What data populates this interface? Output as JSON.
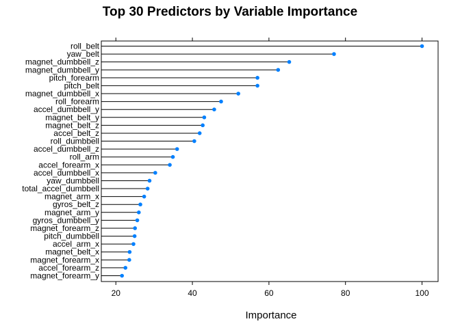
{
  "chart_data": {
    "type": "dotplot",
    "title": "Top 30 Predictors by Variable Importance",
    "xlabel": "Importance",
    "ylabel": "",
    "xlim": [
      16.2,
      104.2
    ],
    "xticks": [
      20,
      40,
      60,
      80,
      100
    ],
    "grid": false,
    "colors": {
      "point": "#0080ff",
      "segment": "#000000",
      "frame": "#000000"
    },
    "categories": [
      "roll_belt",
      "yaw_belt",
      "magnet_dumbbell_z",
      "magnet_dumbbell_y",
      "pitch_forearm",
      "pitch_belt",
      "magnet_dumbbell_x",
      "roll_forearm",
      "accel_dumbbell_y",
      "magnet_belt_y",
      "magnet_belt_z",
      "accel_belt_z",
      "roll_dumbbell",
      "accel_dumbbell_z",
      "roll_arm",
      "accel_forearm_x",
      "accel_dumbbell_x",
      "yaw_dumbbell",
      "total_accel_dumbbell",
      "magnet_arm_x",
      "gyros_belt_z",
      "magnet_arm_y",
      "gyros_dumbbell_y",
      "magnet_forearm_z",
      "pitch_dumbbell",
      "accel_arm_x",
      "magnet_belt_x",
      "magnet_forearm_x",
      "accel_forearm_z",
      "magnet_forearm_y"
    ],
    "values": [
      100,
      77,
      65.3,
      62.4,
      57,
      57,
      52,
      47.5,
      45.7,
      43.1,
      42.7,
      41.9,
      40.5,
      36,
      34.9,
      34.1,
      30.3,
      28.8,
      28.3,
      27.4,
      26.4,
      26,
      25.6,
      25,
      24.9,
      24.6,
      23.6,
      23.5,
      22.5,
      21.6
    ]
  }
}
